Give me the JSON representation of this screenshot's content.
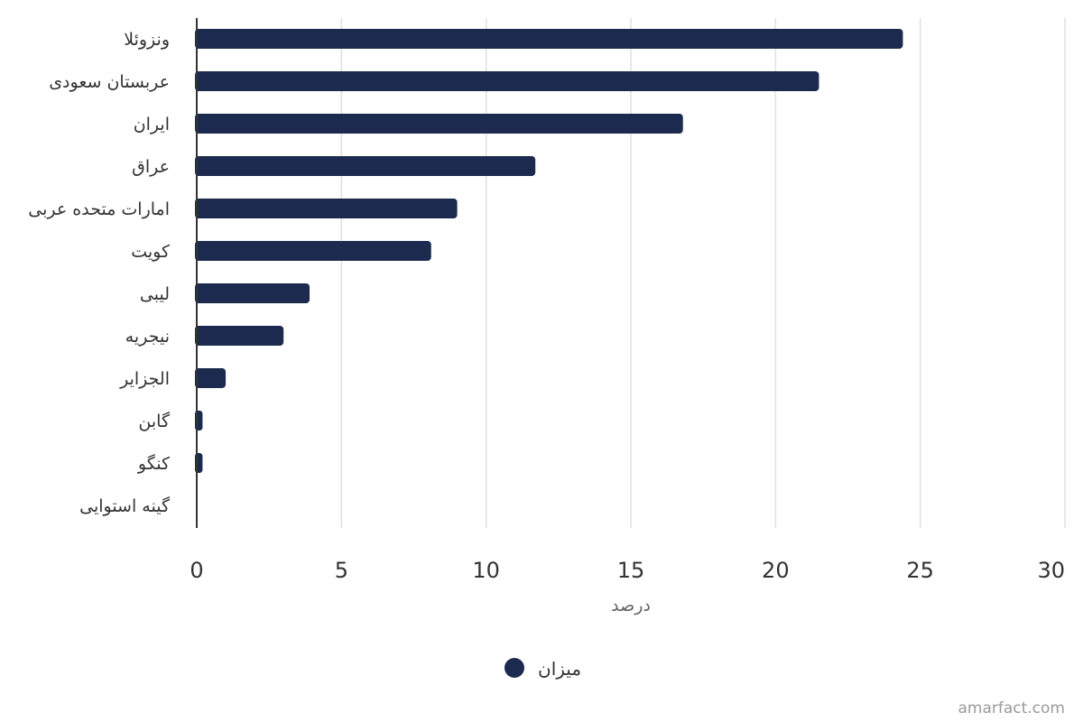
{
  "chart_data": {
    "type": "bar",
    "orientation": "horizontal",
    "categories": [
      "ونزوئلا",
      "عربستان سعودی",
      "ایران",
      "عراق",
      "امارات متحده عربی",
      "کویت",
      "لیبی",
      "نیجریه",
      "الجزایر",
      "گابن",
      "کنگو",
      "گینه استوایی"
    ],
    "series": [
      {
        "name": "میزان",
        "color": "#1b2a4e",
        "values": [
          24.4,
          21.5,
          16.8,
          11.7,
          9.0,
          8.1,
          3.9,
          3.0,
          1.0,
          0.2,
          0.2,
          0.0
        ]
      }
    ],
    "title": "",
    "xlabel": "درصد",
    "ylabel": "",
    "xlim": [
      0,
      30
    ],
    "x_ticks": [
      0,
      5,
      10,
      15,
      20,
      25,
      30
    ],
    "grid": true,
    "legend_position": "bottom-center"
  },
  "credit": "amarfact.com",
  "colors": {
    "bar": "#1b2a4e",
    "grid": "#e0e0e0",
    "axis_line": "#333333"
  }
}
